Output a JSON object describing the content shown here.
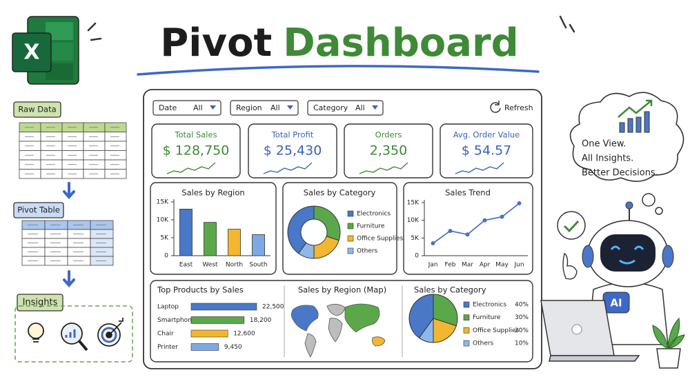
{
  "header": {
    "title": "Pivot",
    "title_accent": "Dashboard"
  },
  "excel_icon": "X",
  "sidebar": {
    "raw_data": "Raw Data",
    "pivot_table": "Pivot Table",
    "insights": "Insights"
  },
  "filters": [
    {
      "label": "Date",
      "value": "All"
    },
    {
      "label": "Region",
      "value": "All"
    },
    {
      "label": "Category",
      "value": "All"
    }
  ],
  "refresh": "Refresh",
  "kpis": [
    {
      "label": "Total Sales",
      "value": "$ 128,750",
      "color": "#3b8a35"
    },
    {
      "label": "Total Profit",
      "value": "$ 25,430",
      "color": "#3a62b8"
    },
    {
      "label": "Orders",
      "value": "2,350",
      "color": "#3b8a35"
    },
    {
      "label": "Avg. Order Value",
      "value": "$ 54.57",
      "color": "#3a62b8"
    }
  ],
  "map": {
    "title": "Sales by Region (Map)"
  },
  "chart_data": [
    {
      "type": "bar",
      "title": "Sales by Region",
      "categories": [
        "East",
        "West",
        "North",
        "South"
      ],
      "values": [
        13000,
        9300,
        7400,
        5900
      ],
      "colors": [
        "#4a78c8",
        "#5aa84a",
        "#f2b630",
        "#7fa9e3"
      ],
      "ylim": [
        0,
        15000
      ],
      "yticks": [
        0,
        {
          "value": 5000,
          "label": "5K"
        },
        {
          "value": 10000,
          "label": "10K"
        },
        {
          "value": 15000,
          "label": "15K"
        }
      ]
    },
    {
      "type": "donut",
      "title": "Sales by Category",
      "categories": [
        "Electronics",
        "Furniture",
        "Office Supplies",
        "Others"
      ],
      "values": [
        40,
        30,
        20,
        10
      ],
      "colors": [
        "#4a78c8",
        "#5aa84a",
        "#f2b630",
        "#8fb8e8"
      ]
    },
    {
      "type": "line",
      "title": "Sales Trend",
      "categories": [
        "Jan",
        "Feb",
        "Mar",
        "Apr",
        "May",
        "Jun"
      ],
      "values": [
        3500,
        7000,
        6000,
        10000,
        11000,
        14800
      ],
      "color": "#4a72c4",
      "ylim": [
        0,
        15000
      ],
      "yticks": [
        0,
        {
          "value": 5000,
          "label": "5K"
        },
        {
          "value": 10000,
          "label": "10K"
        },
        {
          "value": 15000,
          "label": "15K"
        }
      ]
    },
    {
      "type": "hbar",
      "title": "Top Products by Sales",
      "categories": [
        "Laptop",
        "Smartphone",
        "Chair",
        "Printer"
      ],
      "values": [
        22500,
        18200,
        12600,
        9450
      ],
      "value_labels": [
        "22,500",
        "18,200",
        "12,600",
        "9,450"
      ],
      "colors": [
        "#4a78c8",
        "#5aa84a",
        "#f2b630",
        "#7fa9e3"
      ]
    },
    {
      "type": "pie",
      "title": "Sales by Category",
      "categories": [
        "Electronics",
        "Furniture",
        "Office Supplies",
        "Others"
      ],
      "values": [
        40,
        30,
        20,
        10
      ],
      "value_labels": [
        "40%",
        "30%",
        "20%",
        "10%"
      ],
      "colors": [
        "#4a78c8",
        "#5aa84a",
        "#f2b630",
        "#8fb8e8"
      ]
    }
  ],
  "bubble": [
    "One View.",
    "All Insights.",
    "Better Decisions."
  ],
  "robot": "AI"
}
